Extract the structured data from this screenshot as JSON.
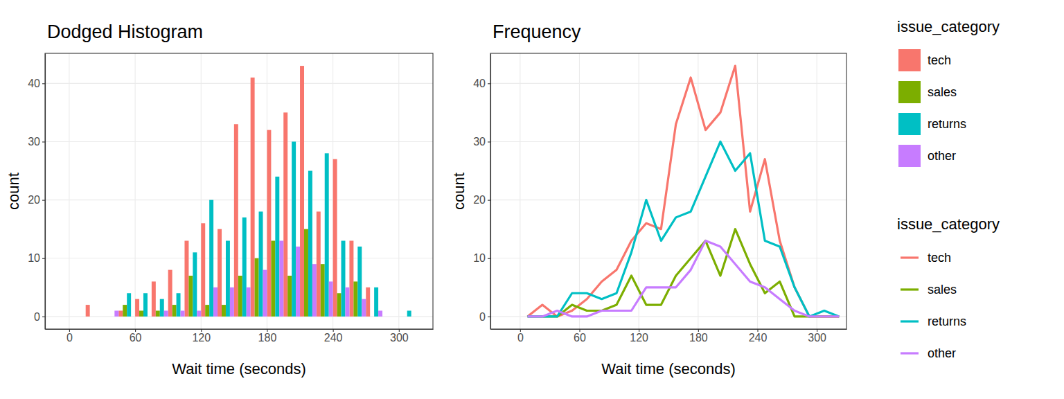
{
  "chart_data": [
    {
      "type": "histogram",
      "title": "Dodged Histogram",
      "x_label": "Wait time (seconds)",
      "y_label": "count",
      "legend_title": "issue_category",
      "legend": "right",
      "grid": true,
      "bins": [
        15,
        30,
        45,
        60,
        75,
        90,
        105,
        120,
        135,
        150,
        165,
        180,
        195,
        210,
        225,
        240,
        255,
        270,
        285,
        300,
        315
      ],
      "series": [
        {
          "name": "tech",
          "color": "#F8766D",
          "values": [
            2,
            0,
            1,
            3,
            6,
            8,
            13,
            16,
            15,
            33,
            41,
            32,
            35,
            43,
            18,
            27,
            13,
            5,
            0,
            0
          ]
        },
        {
          "name": "sales",
          "color": "#7CAE00",
          "values": [
            0,
            0,
            2,
            1,
            1,
            2,
            7,
            2,
            2,
            7,
            10,
            13,
            7,
            15,
            9,
            4,
            6,
            0,
            0,
            0
          ]
        },
        {
          "name": "returns",
          "color": "#00BFC4",
          "values": [
            0,
            0,
            4,
            4,
            3,
            4,
            11,
            20,
            13,
            17,
            18,
            24,
            30,
            25,
            28,
            13,
            12,
            5,
            0,
            1
          ]
        },
        {
          "name": "other",
          "color": "#C77CFF",
          "values": [
            0,
            1,
            0,
            0,
            1,
            1,
            1,
            5,
            5,
            5,
            8,
            13,
            12,
            9,
            6,
            5,
            3,
            1,
            0,
            0
          ]
        }
      ],
      "xlim": [
        -22,
        331
      ],
      "xticks": [
        0,
        60,
        120,
        180,
        240,
        300
      ],
      "ylim": [
        -2.15,
        45.15
      ],
      "yticks": [
        0,
        10,
        20,
        30,
        40
      ]
    },
    {
      "type": "line",
      "title": "Frequency",
      "x_label": "Wait time (seconds)",
      "y_label": "count",
      "legend_title": "issue_category",
      "legend": "right",
      "grid": true,
      "x": [
        7.5,
        22.5,
        37.5,
        52.5,
        67.5,
        82.5,
        97.5,
        112.5,
        127.5,
        142.5,
        157.5,
        172.5,
        187.5,
        202.5,
        217.5,
        232.5,
        247.5,
        262.5,
        277.5,
        292.5,
        307.5,
        322.5
      ],
      "series": [
        {
          "name": "tech",
          "color": "#F8766D",
          "values": [
            0,
            2,
            0,
            1,
            3,
            6,
            8,
            13,
            16,
            15,
            33,
            41,
            32,
            35,
            43,
            18,
            27,
            13,
            5,
            0,
            0,
            0
          ]
        },
        {
          "name": "sales",
          "color": "#7CAE00",
          "values": [
            0,
            0,
            0,
            2,
            1,
            1,
            2,
            7,
            2,
            2,
            7,
            10,
            13,
            7,
            15,
            9,
            4,
            6,
            0,
            0,
            0,
            0
          ]
        },
        {
          "name": "returns",
          "color": "#00BFC4",
          "values": [
            0,
            0,
            0,
            4,
            4,
            3,
            4,
            11,
            20,
            13,
            17,
            18,
            24,
            30,
            25,
            28,
            13,
            12,
            5,
            0,
            1,
            0
          ]
        },
        {
          "name": "other",
          "color": "#C77CFF",
          "values": [
            0,
            0,
            1,
            0,
            0,
            1,
            1,
            1,
            5,
            5,
            5,
            8,
            13,
            12,
            9,
            6,
            5,
            3,
            1,
            0,
            0,
            0
          ]
        }
      ],
      "xlim": [
        -30,
        330
      ],
      "xticks": [
        0,
        60,
        120,
        180,
        240,
        300
      ],
      "ylim": [
        -2.15,
        45.15
      ],
      "yticks": [
        0,
        10,
        20,
        30,
        40
      ]
    }
  ]
}
